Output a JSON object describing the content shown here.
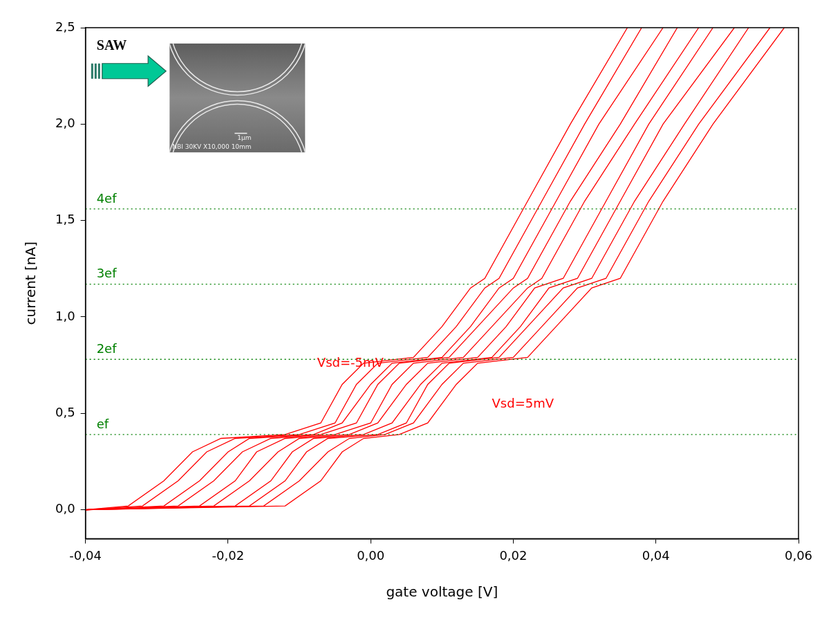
{
  "chart_data": {
    "type": "line",
    "x_label": "gate voltage [V]",
    "y_label": "current [nA]",
    "xlim": [
      -0.04,
      0.06
    ],
    "ylim": [
      -0.15,
      2.5
    ],
    "xticks": [
      {
        "value": -0.04,
        "label": "-0,04"
      },
      {
        "value": -0.02,
        "label": "-0,02"
      },
      {
        "value": 0,
        "label": "0,00"
      },
      {
        "value": 0.02,
        "label": "0,02"
      },
      {
        "value": 0.04,
        "label": "0,04"
      },
      {
        "value": 0.06,
        "label": "0,06"
      }
    ],
    "yticks": [
      {
        "value": 0,
        "label": "0,0"
      },
      {
        "value": 0.5,
        "label": "0,5"
      },
      {
        "value": 1,
        "label": "1,0"
      },
      {
        "value": 1.5,
        "label": "1,5"
      },
      {
        "value": 2,
        "label": "2,0"
      },
      {
        "value": 2.5,
        "label": "2,5"
      }
    ],
    "grid": false,
    "series": [
      {
        "color": "#ff0000",
        "x": [
          -0.04,
          -0.034,
          -0.029,
          -0.025,
          -0.021,
          -0.012,
          -0.007,
          -0.004,
          -0.001,
          0.006,
          0.01,
          0.014,
          0.016,
          0.022,
          0.028,
          0.036
        ],
        "values": [
          0,
          0.02,
          0.15,
          0.3,
          0.37,
          0.39,
          0.45,
          0.65,
          0.76,
          0.79,
          0.95,
          1.15,
          1.2,
          1.6,
          2.0,
          2.5
        ]
      },
      {
        "color": "#ff0000",
        "x": [
          -0.04,
          -0.032,
          -0.027,
          -0.023,
          -0.019,
          -0.01,
          -0.005,
          -0.002,
          0.001,
          0.008,
          0.012,
          0.016,
          0.018,
          0.024,
          0.03,
          0.038
        ],
        "values": [
          0,
          0.02,
          0.15,
          0.3,
          0.37,
          0.39,
          0.45,
          0.65,
          0.76,
          0.79,
          0.95,
          1.15,
          1.2,
          1.6,
          2.0,
          2.5
        ]
      },
      {
        "color": "#ff0000",
        "x": [
          -0.04,
          -0.029,
          -0.024,
          -0.02,
          -0.017,
          -0.008,
          -0.004,
          0.0,
          0.003,
          0.01,
          0.014,
          0.018,
          0.02,
          0.026,
          0.032,
          0.041
        ],
        "values": [
          0,
          0.02,
          0.15,
          0.3,
          0.37,
          0.39,
          0.45,
          0.65,
          0.76,
          0.79,
          0.95,
          1.15,
          1.2,
          1.6,
          2.0,
          2.5
        ]
      },
      {
        "color": "#ff0000",
        "x": [
          -0.04,
          -0.027,
          -0.022,
          -0.018,
          -0.014,
          -0.007,
          -0.002,
          0.001,
          0.004,
          0.011,
          0.015,
          0.02,
          0.022,
          0.028,
          0.035,
          0.043
        ],
        "values": [
          0,
          0.02,
          0.15,
          0.3,
          0.37,
          0.39,
          0.45,
          0.65,
          0.76,
          0.79,
          0.95,
          1.15,
          1.2,
          1.6,
          2.0,
          2.5
        ]
      },
      {
        "color": "#ff0000",
        "x": [
          -0.04,
          -0.024,
          -0.019,
          -0.016,
          -0.012,
          -0.005,
          0.0,
          0.003,
          0.006,
          0.013,
          0.017,
          0.022,
          0.024,
          0.03,
          0.037,
          0.046
        ],
        "values": [
          0,
          0.02,
          0.15,
          0.3,
          0.37,
          0.39,
          0.45,
          0.65,
          0.76,
          0.79,
          0.95,
          1.15,
          1.2,
          1.6,
          2.0,
          2.5
        ]
      },
      {
        "color": "#ff0000",
        "x": [
          -0.04,
          -0.022,
          -0.017,
          -0.013,
          -0.01,
          -0.003,
          0.001,
          0.005,
          0.008,
          0.015,
          0.019,
          0.023,
          0.027,
          0.033,
          0.039,
          0.048
        ],
        "values": [
          0,
          0.02,
          0.15,
          0.3,
          0.37,
          0.39,
          0.45,
          0.65,
          0.76,
          0.79,
          0.95,
          1.15,
          1.2,
          1.6,
          2.0,
          2.5
        ]
      },
      {
        "color": "#ff0000",
        "x": [
          -0.04,
          -0.019,
          -0.014,
          -0.011,
          -0.008,
          -0.001,
          0.003,
          0.007,
          0.01,
          0.017,
          0.021,
          0.025,
          0.029,
          0.035,
          0.041,
          0.051
        ],
        "values": [
          0,
          0.02,
          0.15,
          0.3,
          0.37,
          0.39,
          0.45,
          0.65,
          0.76,
          0.79,
          0.95,
          1.15,
          1.2,
          1.6,
          2.0,
          2.5
        ]
      },
      {
        "color": "#ff0000",
        "x": [
          -0.04,
          -0.017,
          -0.012,
          -0.009,
          -0.006,
          0.001,
          0.005,
          0.008,
          0.011,
          0.018,
          0.022,
          0.027,
          0.031,
          0.037,
          0.044,
          0.053
        ],
        "values": [
          0,
          0.02,
          0.15,
          0.3,
          0.37,
          0.39,
          0.45,
          0.65,
          0.76,
          0.79,
          0.95,
          1.15,
          1.2,
          1.6,
          2.0,
          2.5
        ]
      },
      {
        "color": "#ff0000",
        "x": [
          -0.04,
          -0.015,
          -0.01,
          -0.006,
          -0.003,
          0.002,
          0.006,
          0.01,
          0.013,
          0.02,
          0.024,
          0.029,
          0.033,
          0.039,
          0.046,
          0.056
        ],
        "values": [
          0,
          0.02,
          0.15,
          0.3,
          0.37,
          0.39,
          0.45,
          0.65,
          0.76,
          0.79,
          0.95,
          1.15,
          1.2,
          1.6,
          2.0,
          2.5
        ]
      },
      {
        "color": "#ff0000",
        "x": [
          -0.04,
          -0.012,
          -0.007,
          -0.004,
          -0.001,
          0.004,
          0.008,
          0.012,
          0.015,
          0.022,
          0.026,
          0.031,
          0.035,
          0.041,
          0.048,
          0.058
        ],
        "values": [
          0,
          0.02,
          0.15,
          0.3,
          0.37,
          0.39,
          0.45,
          0.65,
          0.76,
          0.79,
          0.95,
          1.15,
          1.2,
          1.6,
          2.0,
          2.5
        ]
      }
    ],
    "reference_lines": [
      {
        "value": 0.39,
        "label": "ef",
        "color": "#008000",
        "line_style": "dotted"
      },
      {
        "value": 0.78,
        "label": "2ef",
        "color": "#008000",
        "line_style": "dotted"
      },
      {
        "value": 1.17,
        "label": "3ef",
        "color": "#008000",
        "line_style": "dotted"
      },
      {
        "value": 1.56,
        "label": "4ef",
        "color": "#008000",
        "line_style": "dotted"
      }
    ],
    "annotations": [
      "SAW",
      "Vsd=-5mV",
      "Vsd=5mV",
      "1μm",
      "NBI 30KV X10,000 10mm"
    ],
    "annotation_color": "#ff0000"
  }
}
